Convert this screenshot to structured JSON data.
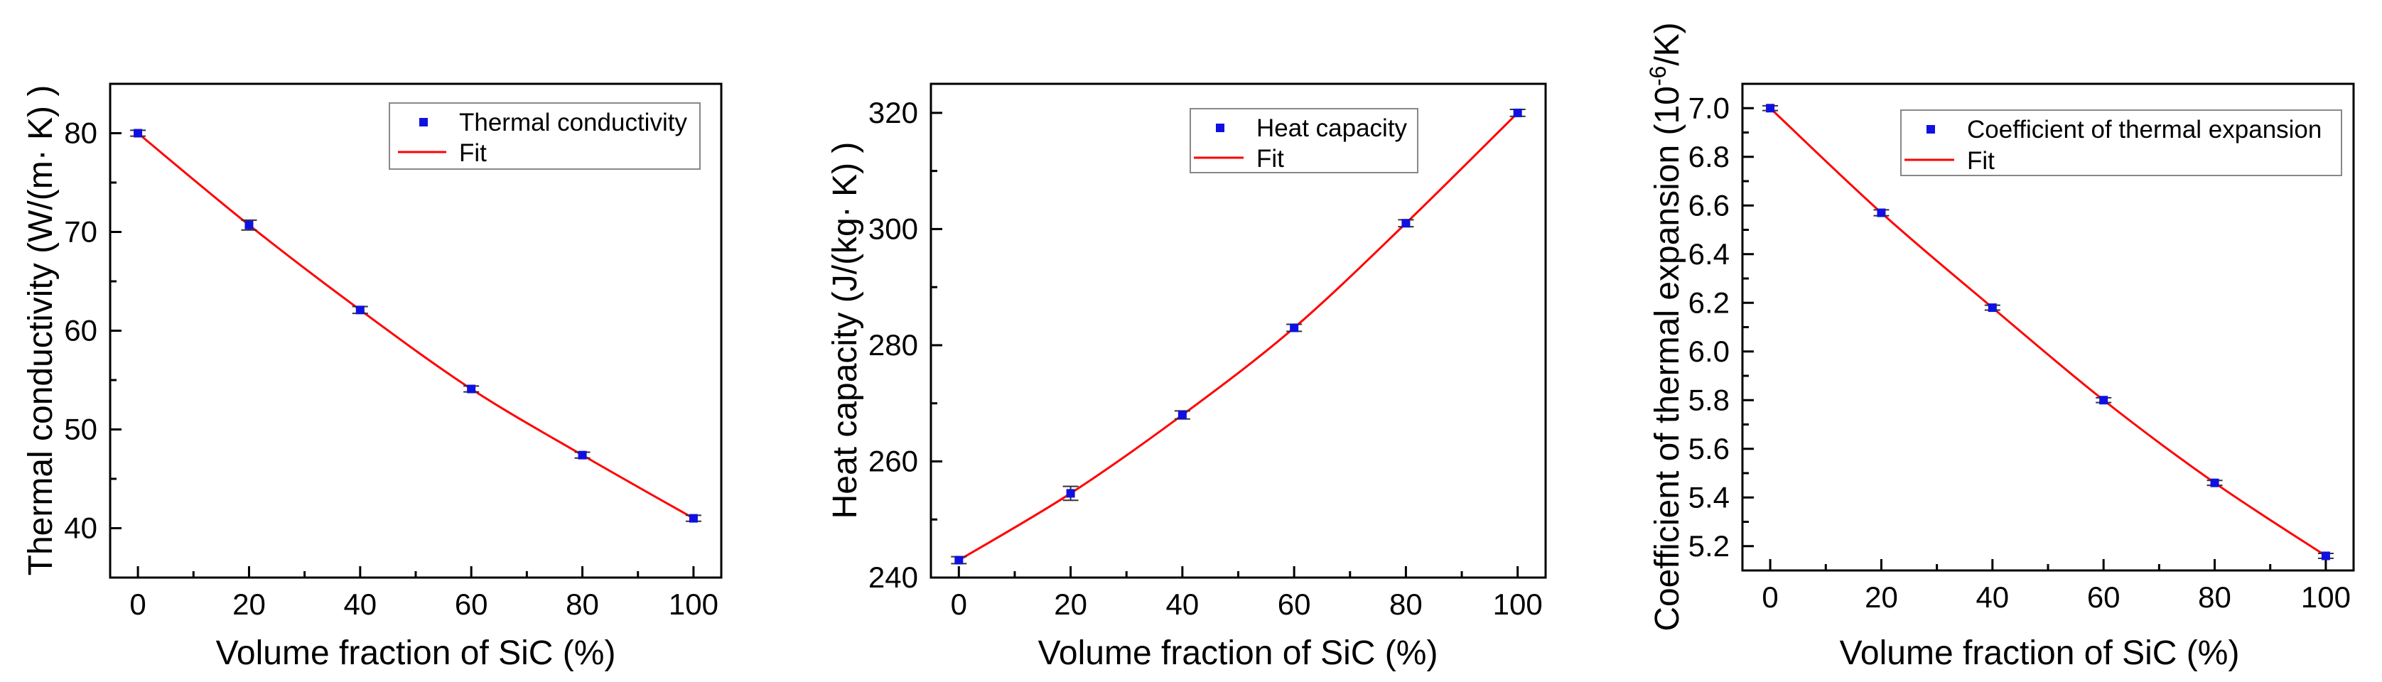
{
  "colors": {
    "marker": "#1010e0",
    "fit_line": "#ff0000",
    "error_bar": "#333333",
    "axis": "#000000",
    "legend_border": "#888888"
  },
  "chart_data": [
    {
      "type": "scatter",
      "title": "",
      "xlabel": "Volume fraction of SiC (%)",
      "ylabel": "Thermal conductivity (W/(m· K) )",
      "x": [
        0,
        20,
        40,
        60,
        80,
        100
      ],
      "y": [
        80.0,
        70.7,
        62.1,
        54.1,
        47.4,
        41.0
      ],
      "yerr": [
        0.3,
        0.5,
        0.35,
        0.3,
        0.3,
        0.3
      ],
      "fit": [
        80.0,
        70.7,
        62.1,
        54.1,
        47.4,
        41.0
      ],
      "xlim": [
        -5,
        105
      ],
      "ylim": [
        35,
        85
      ],
      "xticks": [
        0,
        20,
        40,
        60,
        80,
        100
      ],
      "yticks": [
        40,
        50,
        60,
        70,
        80
      ],
      "xtick_labels": [
        "0",
        "20",
        "40",
        "60",
        "80",
        "100"
      ],
      "ytick_labels": [
        "40",
        "50",
        "60",
        "70",
        "80"
      ],
      "legend": {
        "placement": "top-right",
        "entries": [
          "Thermal conductivity",
          "Fit"
        ]
      }
    },
    {
      "type": "scatter",
      "title": "",
      "xlabel": "Volume fraction of SiC (%)",
      "ylabel": "Heat capacity (J/(kg· K) )",
      "x": [
        0,
        20,
        40,
        60,
        80,
        100
      ],
      "y": [
        243.0,
        254.5,
        268.0,
        283.0,
        301.0,
        320.0
      ],
      "yerr": [
        0.6,
        1.2,
        0.7,
        0.6,
        0.6,
        0.6
      ],
      "fit": [
        243.0,
        254.5,
        268.0,
        283.0,
        301.0,
        320.0
      ],
      "xlim": [
        -5,
        105
      ],
      "ylim": [
        240,
        325
      ],
      "xticks": [
        0,
        20,
        40,
        60,
        80,
        100
      ],
      "yticks": [
        240,
        260,
        280,
        300,
        320
      ],
      "xtick_labels": [
        "0",
        "20",
        "40",
        "60",
        "80",
        "100"
      ],
      "ytick_labels": [
        "240",
        "260",
        "280",
        "300",
        "320"
      ],
      "legend": {
        "placement": "top-right",
        "entries": [
          "Heat capacity",
          "Fit"
        ]
      }
    },
    {
      "type": "scatter",
      "title": "",
      "xlabel": "Volume fraction of SiC (%)",
      "ylabel_prefix": "Coefficient of thermal expansion (10",
      "ylabel_sup": "-6",
      "ylabel_suffix": "/K)",
      "x": [
        0,
        20,
        40,
        60,
        80,
        100
      ],
      "y": [
        7.0,
        6.57,
        6.18,
        5.8,
        5.46,
        5.16
      ],
      "yerr": [
        0.01,
        0.012,
        0.01,
        0.01,
        0.01,
        0.01
      ],
      "fit": [
        7.0,
        6.57,
        6.18,
        5.8,
        5.46,
        5.16
      ],
      "xlim": [
        -5,
        105
      ],
      "ylim": [
        5.1,
        7.1
      ],
      "xticks": [
        0,
        20,
        40,
        60,
        80,
        100
      ],
      "yticks": [
        5.2,
        5.4,
        5.6,
        5.8,
        6.0,
        6.2,
        6.4,
        6.6,
        6.8,
        7.0
      ],
      "xtick_labels": [
        "0",
        "20",
        "40",
        "60",
        "80",
        "100"
      ],
      "ytick_labels": [
        "5.2",
        "5.4",
        "5.6",
        "5.8",
        "6.0",
        "6.2",
        "6.4",
        "6.6",
        "6.8",
        "7.0"
      ],
      "legend": {
        "placement": "top-right",
        "entries": [
          "Coefficient of thermal expansion",
          "Fit"
        ]
      }
    }
  ]
}
